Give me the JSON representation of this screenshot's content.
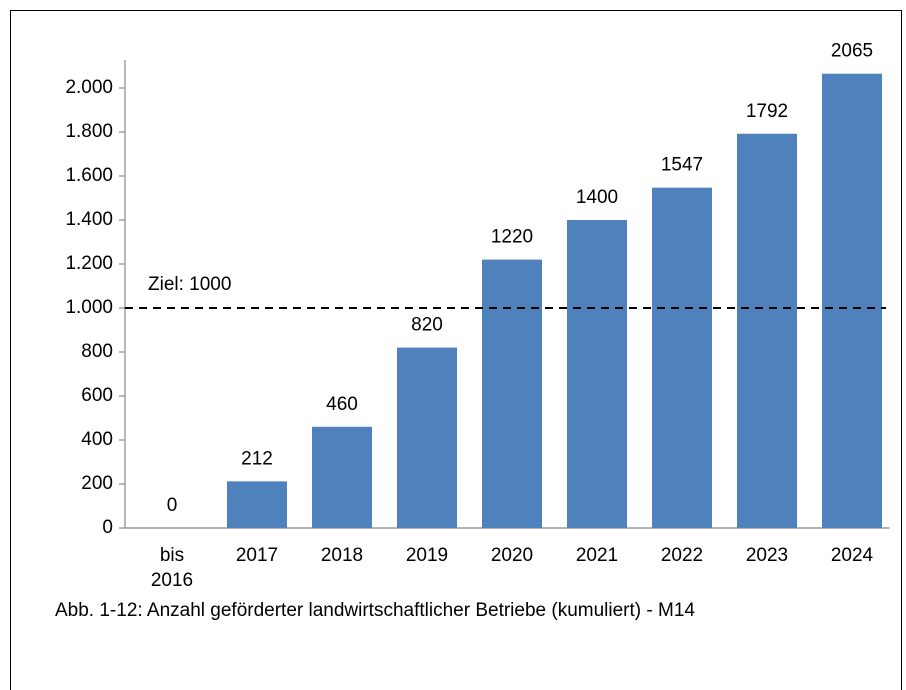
{
  "chart_data": {
    "type": "bar",
    "categories": [
      "bis 2016",
      "2017",
      "2018",
      "2019",
      "2020",
      "2021",
      "2022",
      "2023",
      "2024"
    ],
    "values": [
      0,
      212,
      460,
      820,
      1220,
      1400,
      1547,
      1792,
      2065
    ],
    "color": "#4f81bd",
    "ylim": [
      0,
      2200
    ],
    "yticks": [
      0,
      200,
      400,
      600,
      800,
      {
        "value": 1000,
        "label": "1.000"
      },
      {
        "value": 1200,
        "label": "1.200"
      },
      {
        "value": 1400,
        "label": "1.400"
      },
      {
        "value": 1600,
        "label": "1.600"
      },
      {
        "value": 1800,
        "label": "1.800"
      },
      {
        "value": 2000,
        "label": "2.000"
      }
    ],
    "target": {
      "value": 1000,
      "label": "Ziel: 1000"
    },
    "caption": "Abb. 1-12: Anzahl geförderter landwirtschaftlicher Betriebe (kumuliert) - M14"
  }
}
